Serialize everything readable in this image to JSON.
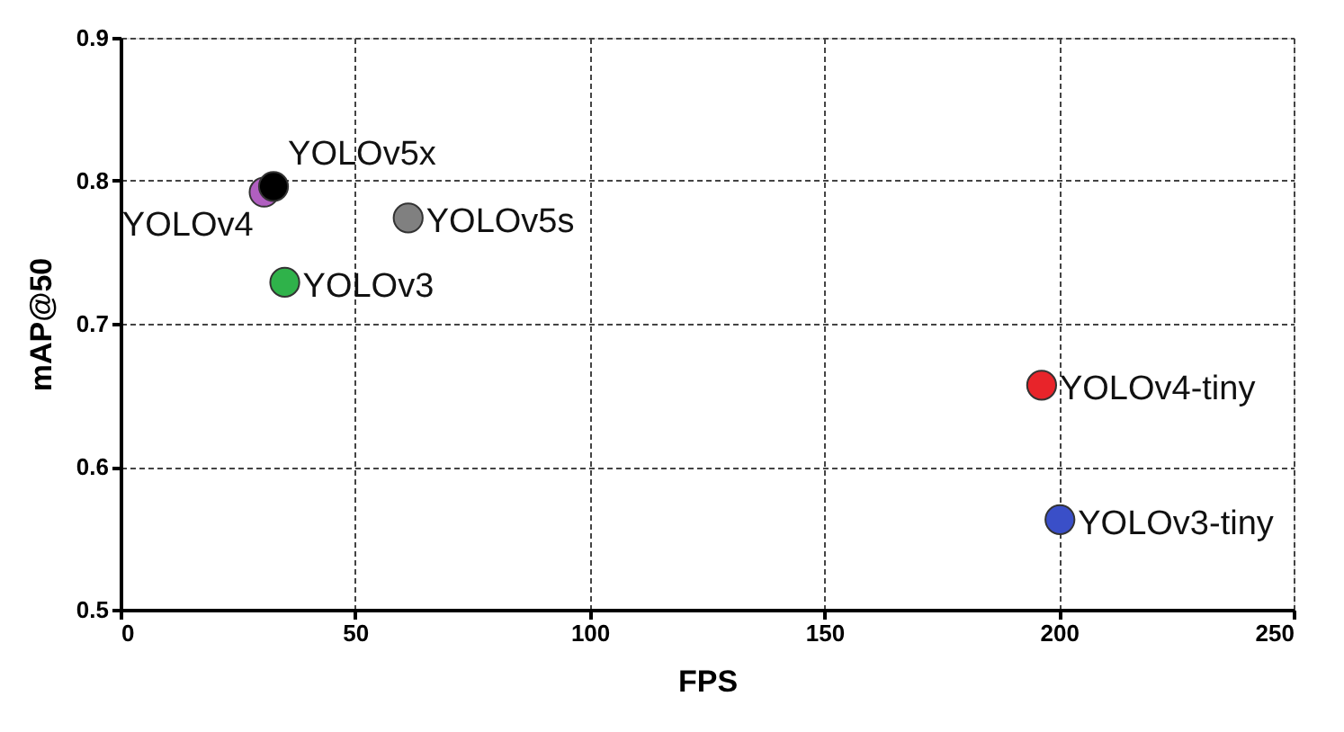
{
  "chart_data": {
    "type": "scatter",
    "xlabel": "FPS",
    "ylabel": "mAP@50",
    "xlim": [
      0,
      250
    ],
    "xticks": [
      0,
      50,
      100,
      150,
      200,
      250
    ],
    "ylim": [
      0.5,
      0.9
    ],
    "yticks": [
      0.5,
      0.6,
      0.7,
      0.8,
      0.9
    ],
    "grid": true,
    "legend": false,
    "marker": "circle",
    "series": [
      {
        "name": "YOLOv5x",
        "color": "#000000",
        "x": [
          32.6
        ],
        "values": [
          0.796
        ]
      },
      {
        "name": "YOLOv4",
        "color": "#b05fc0",
        "x": [
          30.6
        ],
        "values": [
          0.792
        ]
      },
      {
        "name": "YOLOv5s",
        "color": "#808080",
        "x": [
          61.3
        ],
        "values": [
          0.774
        ]
      },
      {
        "name": "YOLOv3",
        "color": "#2fb24a",
        "x": [
          35
        ],
        "values": [
          0.729
        ]
      },
      {
        "name": "YOLOv4-tiny",
        "color": "#e8242a",
        "x": [
          196.3
        ],
        "values": [
          0.657
        ]
      },
      {
        "name": "YOLOv3-tiny",
        "color": "#3a4fc8",
        "x": [
          200.2
        ],
        "values": [
          0.563
        ]
      }
    ]
  }
}
